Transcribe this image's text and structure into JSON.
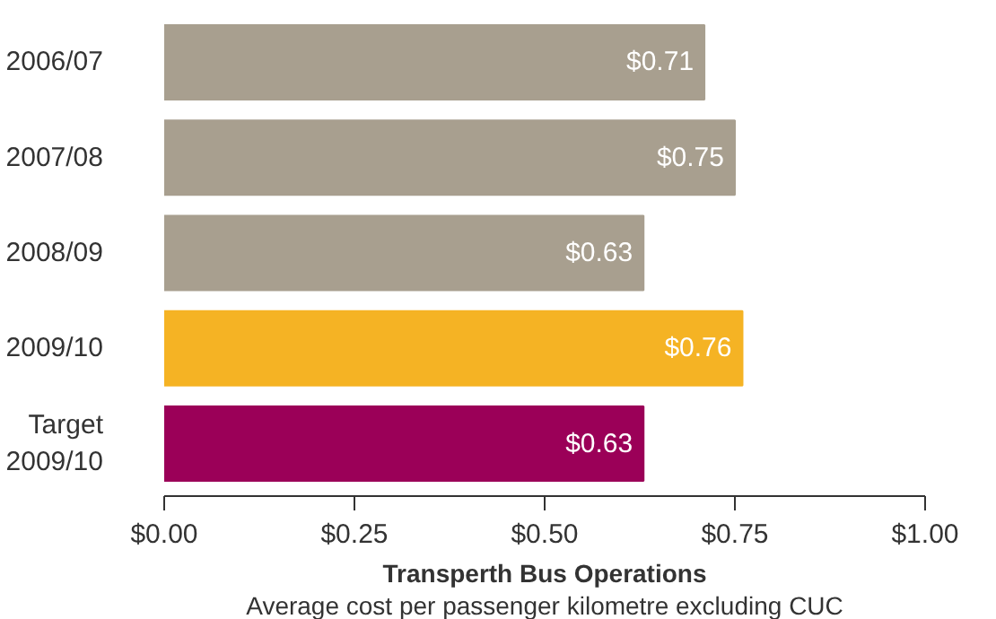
{
  "chart_data": {
    "type": "bar",
    "orientation": "horizontal",
    "categories": [
      "2006/07",
      "2007/08",
      "2008/09",
      "2009/10",
      "Target\n2009/10"
    ],
    "values": [
      0.71,
      0.75,
      0.63,
      0.76,
      0.63
    ],
    "colors": [
      "#a89f8f",
      "#a89f8f",
      "#a89f8f",
      "#f5b324",
      "#9b0058"
    ],
    "value_labels": [
      "$0.71",
      "$0.75",
      "$0.63",
      "$0.76",
      "$0.63"
    ],
    "xlim": [
      0,
      1
    ],
    "xticks": [
      {
        "value": 0,
        "label": "$0.00"
      },
      {
        "value": 0.25,
        "label": "$0.25"
      },
      {
        "value": 0.5,
        "label": "$0.50"
      },
      {
        "value": 0.75,
        "label": "$0.75"
      },
      {
        "value": 1,
        "label": "$1.00"
      }
    ],
    "xlabel": "Transperth Bus Operations",
    "subtitle": "Average cost per passenger kilometre excluding CUC",
    "grid": false
  }
}
